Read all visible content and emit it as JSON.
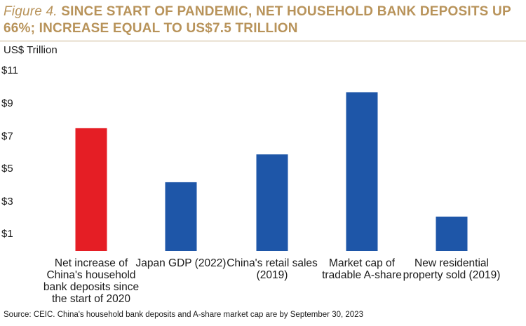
{
  "header": {
    "figure_label": "Figure 4.",
    "title": "SINCE START OF PANDEMIC, NET HOUSEHOLD BANK DEPOSITS UP 66%; INCREASE EQUAL TO US$7.5 TRILLION"
  },
  "source": "Source: CEIC. China's household bank deposits and A-share market cap are by September 30, 2023",
  "chart_data": {
    "type": "bar",
    "title": "",
    "ylabel": "US$ Trillion",
    "xlabel": "",
    "categories": [
      "Net increase of China's household bank deposits since the start of 2020",
      "Japan GDP (2022)",
      "China's retail sales (2019)",
      "Market cap of tradable A-share",
      "New residential property sold (2019)"
    ],
    "values": [
      7.5,
      4.2,
      5.9,
      9.7,
      2.1
    ],
    "colors": [
      "#e51e25",
      "#1e56a8",
      "#1e56a8",
      "#1e56a8",
      "#1e56a8"
    ],
    "yticks": [
      "$1",
      "$3",
      "$5",
      "$7",
      "$9",
      "$11"
    ],
    "ylim": [
      0,
      11
    ],
    "grid": false,
    "legend": "none"
  }
}
